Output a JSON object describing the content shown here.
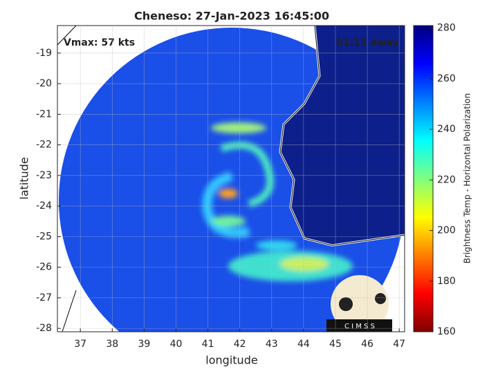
{
  "chart_data": {
    "type": "image-map",
    "title": "Cheneso: 27-Jan-2023 16:45:00",
    "annotations": [
      "Vmax: 57 kts",
      "01:13 away"
    ],
    "xlabel": "longitude",
    "ylabel": "latitude",
    "xlim": [
      36.28,
      47.17
    ],
    "ylim": [
      -28.11,
      -18.1
    ],
    "xticks": [
      37,
      38,
      39,
      40,
      41,
      42,
      43,
      44,
      45,
      46,
      47
    ],
    "yticks": [
      -28,
      -27,
      -26,
      -25,
      -24,
      -23,
      -22,
      -21,
      -20,
      -19
    ],
    "grid": true,
    "colorbar": {
      "label": "Brightness Temp - Horizontal Polarization",
      "lim": [
        160,
        281
      ],
      "ticks": [
        160,
        180,
        200,
        220,
        240,
        260,
        280
      ],
      "colormap": "jet"
    },
    "logo": "C I M S S"
  }
}
